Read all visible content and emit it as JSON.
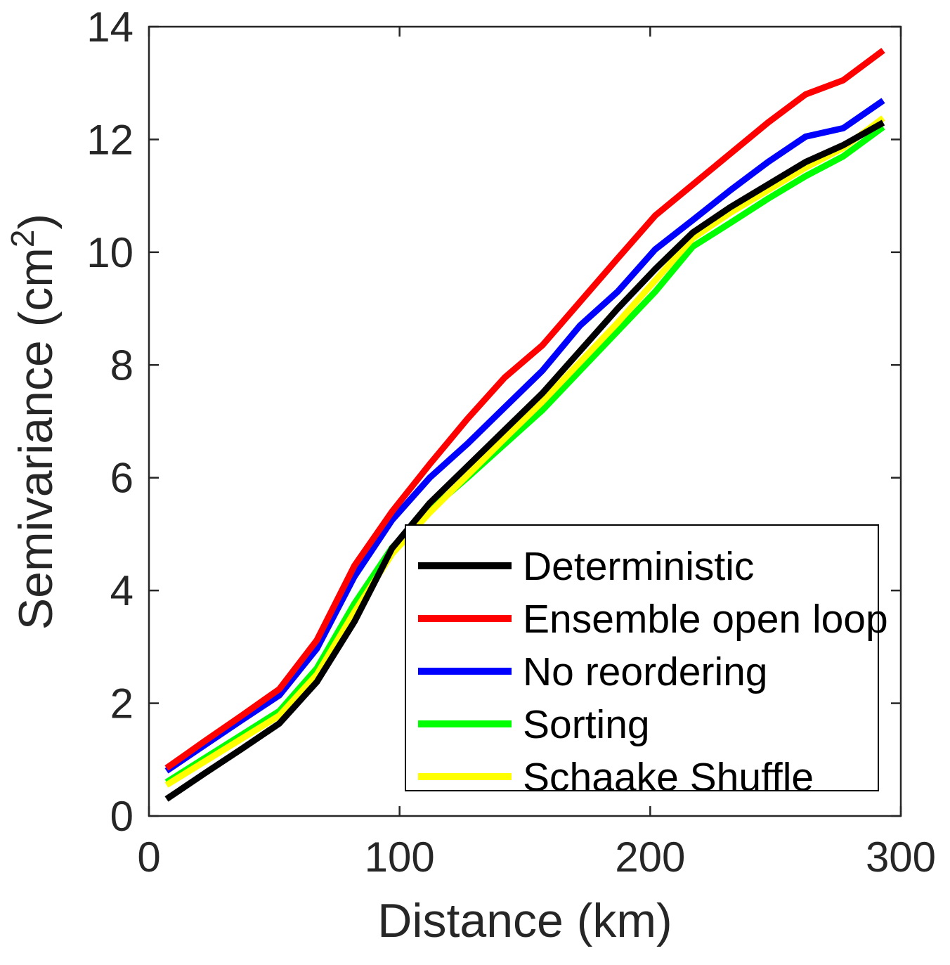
{
  "chart_data": {
    "type": "line",
    "title": "",
    "xlabel": "Distance (km)",
    "ylabel": "Semivariance (cm2)",
    "ylabel_parts": {
      "main": "Semivariance (cm",
      "sup": "2",
      "close": ")"
    },
    "xlim": [
      0,
      300
    ],
    "ylim": [
      0,
      14
    ],
    "xticks": [
      "0",
      "100",
      "200",
      "300"
    ],
    "xtick_values": [
      0,
      100,
      200,
      300
    ],
    "yticks": [
      "0",
      "2",
      "4",
      "6",
      "8",
      "10",
      "12",
      "14"
    ],
    "ytick_values": [
      0,
      2,
      4,
      6,
      8,
      10,
      12,
      14
    ],
    "grid": false,
    "legend_position": "inside-lower-right",
    "axis_color": "#262626",
    "x": [
      7,
      22,
      37,
      52,
      67,
      82,
      97,
      112,
      127,
      142,
      157,
      172,
      187,
      202,
      217,
      232,
      247,
      262,
      277,
      293
    ],
    "series": [
      {
        "name": "Deterministic",
        "color": "#000000",
        "values": [
          0.3,
          0.75,
          1.19,
          1.64,
          2.38,
          3.45,
          4.75,
          5.55,
          6.2,
          6.85,
          7.5,
          8.25,
          9.0,
          9.7,
          10.35,
          10.8,
          11.2,
          11.6,
          11.9,
          12.3
        ]
      },
      {
        "name": "Ensemble open loop",
        "color": "#ff0000",
        "values": [
          0.85,
          1.32,
          1.78,
          2.25,
          3.12,
          4.44,
          5.4,
          6.24,
          7.04,
          7.78,
          8.35,
          9.12,
          9.89,
          10.65,
          11.2,
          11.75,
          12.3,
          12.8,
          13.05,
          13.58
        ]
      },
      {
        "name": "No reordering",
        "color": "#0000ff",
        "values": [
          0.8,
          1.25,
          1.7,
          2.14,
          2.97,
          4.25,
          5.25,
          6.0,
          6.6,
          7.25,
          7.9,
          8.7,
          9.3,
          10.05,
          10.57,
          11.1,
          11.6,
          12.05,
          12.2,
          12.69
        ]
      },
      {
        "name": "Sorting",
        "color": "#00ff00",
        "values": [
          0.6,
          1.02,
          1.44,
          1.86,
          2.62,
          3.77,
          4.76,
          5.42,
          6.0,
          6.6,
          7.2,
          7.9,
          8.6,
          9.3,
          10.1,
          10.52,
          10.95,
          11.35,
          11.7,
          12.22
        ]
      },
      {
        "name": "Schaake Shuffle",
        "color": "#ffff00",
        "values": [
          0.55,
          0.96,
          1.37,
          1.78,
          2.51,
          3.62,
          4.65,
          5.38,
          6.04,
          6.7,
          7.35,
          8.05,
          8.75,
          9.5,
          10.25,
          10.7,
          11.1,
          11.5,
          11.85,
          12.38
        ]
      }
    ]
  }
}
